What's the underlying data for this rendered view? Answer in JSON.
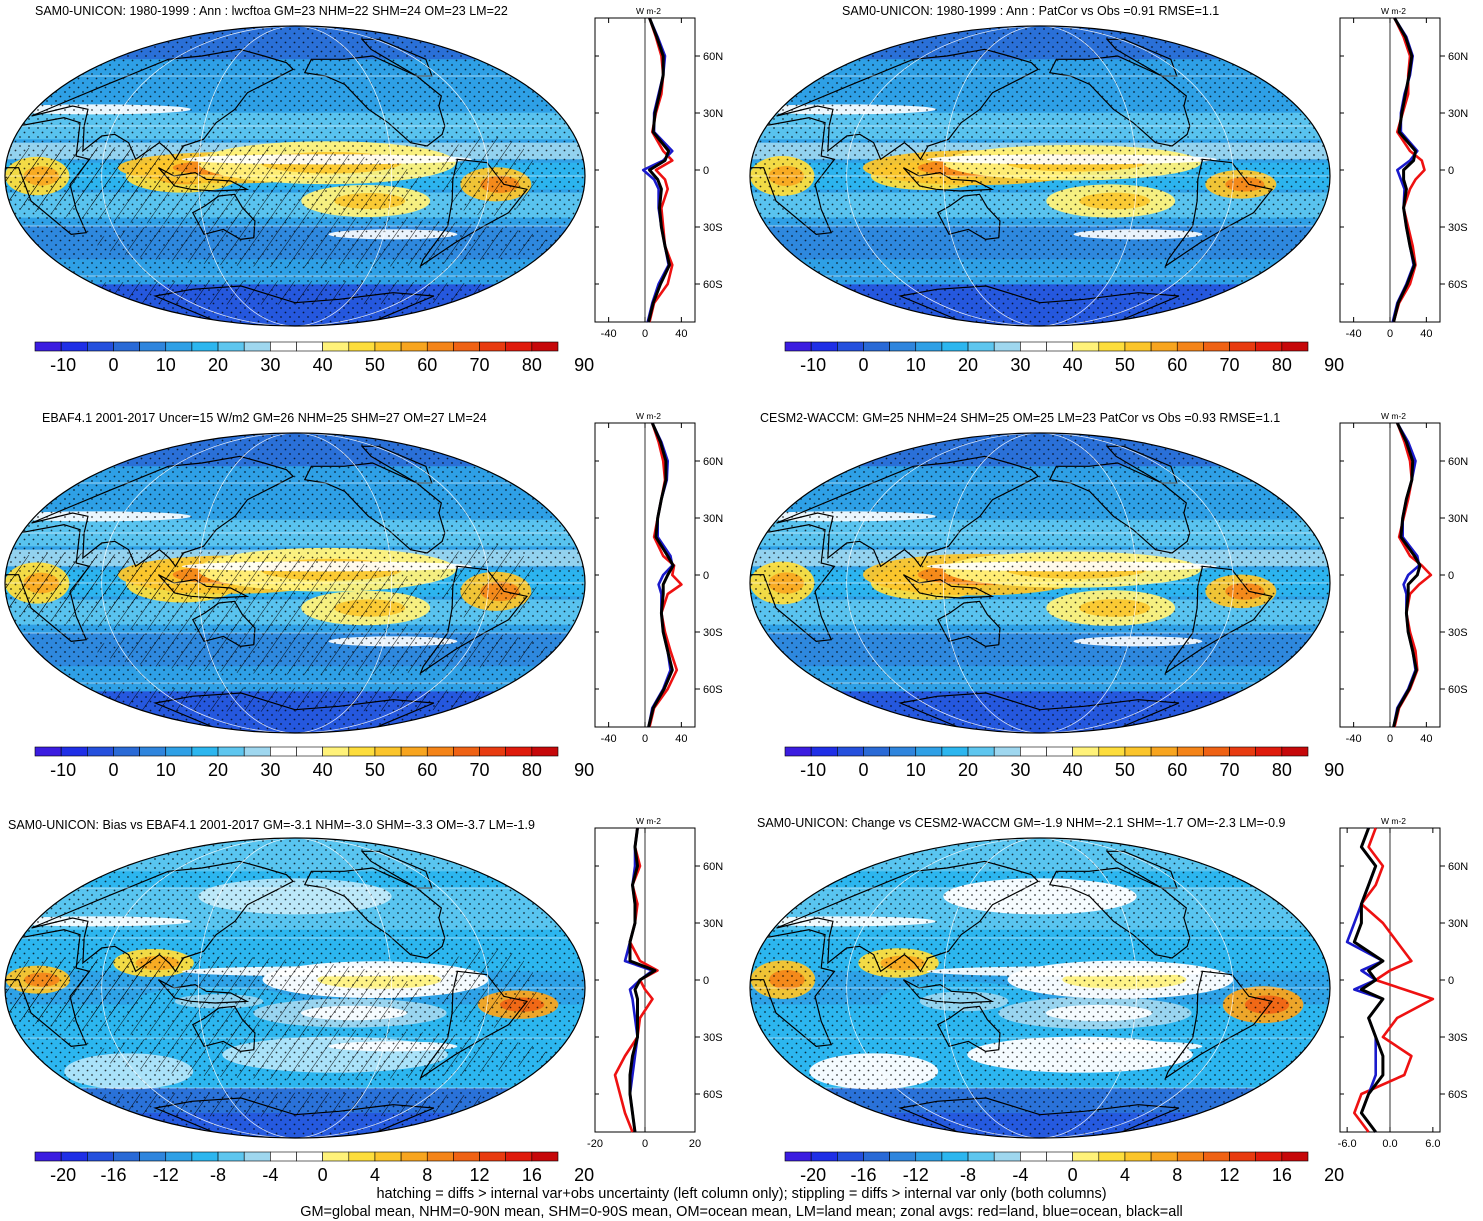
{
  "figure": {
    "footer_line1": "hatching = diffs > internal var+obs uncertainty (left column only); stippling = diffs > internal var only (both columns)",
    "footer_line2": "GM=global mean, NHM=0-90N mean, SHM=0-90S mean, OM=ocean mean, LM=land mean; zonal avgs: red=land, blue=ocean, black=all"
  },
  "colors": {
    "land": "#ee1111",
    "ocean": "#1a1acc",
    "all": "#000000",
    "full_palette": [
      "#3b1de0",
      "#1f2fe6",
      "#2550dd",
      "#2a6ad6",
      "#2f85dd",
      "#2fa0e6",
      "#2cb6ef",
      "#5ec6ef",
      "#9fd7ef",
      "#ffffff",
      "#ffffff",
      "#fff27a",
      "#fddd3c",
      "#fbc52b",
      "#f8a51f",
      "#f48418",
      "#ef6214",
      "#e83b10",
      "#df1b0c",
      "#c6080a"
    ],
    "diff_palette": [
      "#3b1de0",
      "#1f2fe6",
      "#2550dd",
      "#2a6ad6",
      "#2f85dd",
      "#2fa0e6",
      "#2cb6ef",
      "#5ec6ef",
      "#9fd7ef",
      "#ffffff",
      "#ffffff",
      "#fff27a",
      "#fddd3c",
      "#fbc52b",
      "#f8a51f",
      "#f48418",
      "#ef6214",
      "#e83b10",
      "#df1b0c",
      "#c6080a"
    ]
  },
  "chart_data": [
    {
      "type": "heatmap",
      "title": "SAM0-UNICON: 1980-1999 : Ann : lwcftoa GM=23 NHM=22 SHM=24 OM=23 LM=22",
      "colorbar_labels": [
        "-10",
        "0",
        "10",
        "20",
        "30",
        "40",
        "50",
        "60",
        "70",
        "80",
        "90"
      ],
      "hatching": true,
      "zonal_profile": {
        "unit": "W m-2",
        "xticks": [
          "-40",
          "0",
          "40"
        ],
        "xlim": [
          -55,
          55
        ],
        "ylabels": [
          "60N",
          "30N",
          "0",
          "30S",
          "60S"
        ],
        "ylim": [
          -80,
          80
        ],
        "lat": [
          80,
          70,
          60,
          50,
          40,
          30,
          20,
          10,
          5,
          0,
          -5,
          -10,
          -20,
          -30,
          -40,
          -50,
          -60,
          -70,
          -80
        ],
        "land": [
          5,
          12,
          18,
          20,
          18,
          12,
          8,
          20,
          30,
          12,
          22,
          25,
          18,
          20,
          22,
          30,
          25,
          10,
          5
        ],
        "ocean": [
          5,
          14,
          22,
          20,
          15,
          10,
          10,
          30,
          20,
          -2,
          10,
          15,
          15,
          18,
          22,
          26,
          15,
          8,
          3
        ],
        "all": [
          5,
          13,
          20,
          20,
          16,
          11,
          9,
          26,
          22,
          5,
          14,
          18,
          16,
          18,
          22,
          27,
          17,
          9,
          4
        ]
      }
    },
    {
      "type": "heatmap",
      "title": "SAM0-UNICON: 1980-1999 : Ann : PatCor vs Obs =0.91 RMSE=1.1",
      "colorbar_labels": [
        "-10",
        "0",
        "10",
        "20",
        "30",
        "40",
        "50",
        "60",
        "70",
        "80",
        "90"
      ],
      "hatching": false,
      "zonal_profile": {
        "unit": "W m-2",
        "xticks": [
          "-40",
          "0",
          "40"
        ],
        "xlim": [
          -55,
          55
        ],
        "ylabels": [
          "60N",
          "30N",
          "0",
          "30S",
          "60S"
        ],
        "ylim": [
          -80,
          80
        ],
        "lat": [
          80,
          70,
          60,
          50,
          40,
          30,
          20,
          10,
          5,
          0,
          -5,
          -10,
          -20,
          -30,
          -40,
          -50,
          -60,
          -70,
          -80
        ],
        "land": [
          5,
          15,
          22,
          20,
          20,
          14,
          8,
          22,
          35,
          38,
          28,
          22,
          15,
          20,
          25,
          28,
          22,
          10,
          4
        ],
        "ocean": [
          5,
          18,
          25,
          22,
          16,
          12,
          12,
          30,
          22,
          8,
          12,
          16,
          15,
          18,
          22,
          26,
          18,
          8,
          3
        ],
        "all": [
          5,
          17,
          24,
          21,
          17,
          13,
          10,
          28,
          26,
          15,
          15,
          18,
          15,
          18,
          22,
          27,
          19,
          9,
          4
        ]
      }
    },
    {
      "type": "heatmap",
      "title": "EBAF4.1 2001-2017 Uncer=15 W/m2 GM=26 NHM=25 SHM=27 OM=27 LM=24",
      "colorbar_labels": [
        "-10",
        "0",
        "10",
        "20",
        "30",
        "40",
        "50",
        "60",
        "70",
        "80",
        "90"
      ],
      "hatching": true,
      "zonal_profile": {
        "unit": "W m-2",
        "xticks": [
          "-40",
          "0",
          "40"
        ],
        "xlim": [
          -55,
          55
        ],
        "ylabels": [
          "60N",
          "30N",
          "0",
          "30S",
          "60S"
        ],
        "ylim": [
          -80,
          80
        ],
        "lat": [
          80,
          70,
          60,
          50,
          40,
          30,
          20,
          10,
          5,
          0,
          -5,
          -10,
          -20,
          -30,
          -40,
          -50,
          -60,
          -70,
          -80
        ],
        "land": [
          8,
          15,
          20,
          22,
          18,
          14,
          10,
          20,
          32,
          30,
          40,
          25,
          18,
          22,
          28,
          35,
          25,
          10,
          5
        ],
        "ocean": [
          8,
          18,
          25,
          24,
          18,
          14,
          14,
          28,
          30,
          20,
          15,
          18,
          18,
          20,
          25,
          28,
          20,
          8,
          4
        ],
        "all": [
          8,
          17,
          23,
          23,
          18,
          14,
          12,
          25,
          31,
          25,
          20,
          20,
          18,
          20,
          25,
          30,
          21,
          9,
          4
        ]
      }
    },
    {
      "type": "heatmap",
      "title": "CESM2-WACCM: GM=25 NHM=24 SHM=25 OM=25 LM=23 PatCor vs Obs =0.93 RMSE=1.1",
      "colorbar_labels": [
        "-10",
        "0",
        "10",
        "20",
        "30",
        "40",
        "50",
        "60",
        "70",
        "80",
        "90"
      ],
      "hatching": false,
      "zonal_profile": {
        "unit": "W m-2",
        "xticks": [
          "-40",
          "0",
          "40"
        ],
        "xlim": [
          -55,
          55
        ],
        "ylabels": [
          "60N",
          "30N",
          "0",
          "30S",
          "60S"
        ],
        "ylim": [
          -80,
          80
        ],
        "lat": [
          80,
          70,
          60,
          50,
          40,
          30,
          20,
          10,
          5,
          0,
          -5,
          -10,
          -20,
          -30,
          -40,
          -50,
          -60,
          -70,
          -80
        ],
        "land": [
          8,
          16,
          22,
          24,
          20,
          15,
          10,
          22,
          35,
          45,
          32,
          22,
          18,
          22,
          28,
          30,
          22,
          10,
          5
        ],
        "ocean": [
          8,
          20,
          28,
          24,
          18,
          14,
          14,
          30,
          32,
          20,
          15,
          18,
          18,
          20,
          25,
          28,
          20,
          8,
          4
        ],
        "all": [
          8,
          18,
          25,
          24,
          18,
          14,
          12,
          27,
          33,
          30,
          20,
          20,
          18,
          20,
          25,
          29,
          21,
          9,
          4
        ]
      }
    },
    {
      "type": "heatmap",
      "title": "SAM0-UNICON: Bias vs EBAF4.1 2001-2017 GM=-3.1 NHM=-3.0 SHM=-3.3 OM=-3.7 LM=-1.9",
      "colorbar_labels": [
        "-20",
        "-16",
        "-12",
        "-8",
        "-4",
        "0",
        "4",
        "8",
        "12",
        "16",
        "20"
      ],
      "hatching": true,
      "zonal_profile": {
        "unit": "W m-2",
        "xticks": [
          "-20",
          "0",
          "20"
        ],
        "xlim": [
          -20,
          20
        ],
        "ylabels": [
          "60N",
          "30N",
          "0",
          "30S",
          "60S"
        ],
        "ylim": [
          -80,
          80
        ],
        "lat": [
          80,
          70,
          60,
          50,
          40,
          30,
          20,
          10,
          5,
          0,
          -5,
          -10,
          -20,
          -30,
          -40,
          -50,
          -60,
          -70,
          -80
        ],
        "land": [
          -3,
          -4,
          -2,
          -5,
          -3,
          -4,
          -6,
          -2,
          5,
          -2,
          0,
          3,
          -2,
          -3,
          -8,
          -12,
          -10,
          -8,
          -5
        ],
        "ocean": [
          -3,
          -4,
          -4,
          -5,
          -4,
          -4,
          -6,
          -8,
          3,
          -2,
          -6,
          -5,
          -4,
          -3,
          -4,
          -5,
          -6,
          -5,
          -4
        ],
        "all": [
          -3,
          -4,
          -3,
          -5,
          -4,
          -4,
          -6,
          -6,
          4,
          -2,
          -4,
          -3,
          -3,
          -3,
          -5,
          -6,
          -6,
          -5,
          -4
        ]
      }
    },
    {
      "type": "heatmap",
      "title": "SAM0-UNICON: Change vs CESM2-WACCM GM=-1.9 NHM=-2.1 SHM=-1.7 OM=-2.3 LM=-0.9",
      "colorbar_labels": [
        "-20",
        "-16",
        "-12",
        "-8",
        "-4",
        "0",
        "4",
        "8",
        "12",
        "16",
        "20"
      ],
      "hatching": false,
      "zonal_profile": {
        "unit": "W m-2",
        "xticks": [
          "-6.0",
          "0.0",
          "6.0"
        ],
        "xlim": [
          -7,
          7
        ],
        "ylabels": [
          "60N",
          "30N",
          "0",
          "30S",
          "60S"
        ],
        "ylim": [
          -80,
          80
        ],
        "lat": [
          80,
          70,
          60,
          50,
          40,
          30,
          20,
          10,
          5,
          0,
          -5,
          -10,
          -20,
          -30,
          -40,
          -50,
          -60,
          -70,
          -80
        ],
        "land": [
          -2,
          -3,
          -1,
          -2,
          -4,
          -1,
          1,
          3,
          0,
          -2,
          2,
          6,
          1,
          -1,
          3,
          2,
          -4,
          -5,
          -3
        ],
        "ocean": [
          -3,
          -4,
          -2,
          -3,
          -4,
          -5,
          -6,
          -1,
          -4,
          -2,
          -5,
          -1,
          -3,
          -2,
          -2,
          -2,
          -3,
          -4,
          -2
        ],
        "all": [
          -3,
          -4,
          -2,
          -3,
          -4,
          -4,
          -5,
          -1,
          -3,
          -2,
          -4,
          -1,
          -3,
          -2,
          -1,
          -1,
          -3,
          -4,
          -2
        ]
      }
    }
  ]
}
